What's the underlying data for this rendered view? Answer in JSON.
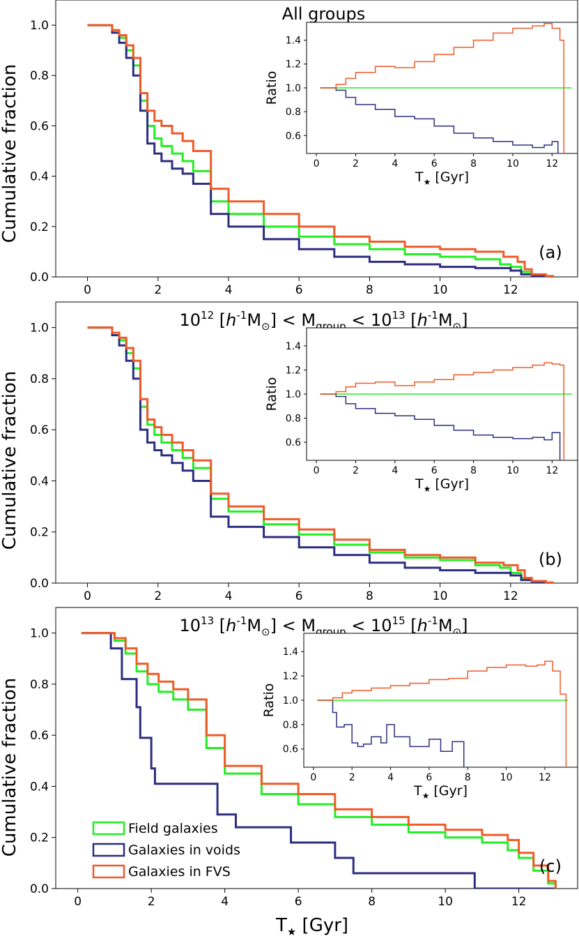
{
  "figure": {
    "xlabel": "T",
    "xlabel_sub": "★",
    "xlabel_unit": " [Gyr]",
    "ylabel": "Cumulative fraction",
    "legend": [
      {
        "label": "Field galaxies",
        "color": "#22ee22"
      },
      {
        "label": "Galaxies in voids",
        "color": "#2d2d80"
      },
      {
        "label": "Galaxies in FVS",
        "color": "#f05a28"
      }
    ]
  },
  "chart_data": [
    {
      "type": "line",
      "panel_label": "(a)",
      "title": "All groups",
      "xlim": [
        -0.9,
        13.9
      ],
      "ylim": [
        0,
        1.1
      ],
      "xticks": [
        0,
        2,
        4,
        6,
        8,
        10,
        12
      ],
      "yticks": [
        0.0,
        0.2,
        0.4,
        0.6,
        0.8,
        1.0
      ],
      "series": [
        {
          "name": "Field galaxies",
          "color": "#22ee22",
          "x": [
            0,
            0.5,
            0.7,
            0.9,
            1.1,
            1.3,
            1.5,
            1.7,
            1.9,
            2.1,
            2.4,
            2.7,
            3.0,
            3.5,
            4.0,
            5.0,
            6.0,
            7.0,
            8.0,
            9.0,
            10.0,
            11.0,
            11.7,
            12.0,
            12.3,
            12.6,
            13.0,
            13.2
          ],
          "y": [
            1.0,
            1.0,
            0.98,
            0.95,
            0.9,
            0.84,
            0.7,
            0.6,
            0.55,
            0.52,
            0.49,
            0.46,
            0.42,
            0.3,
            0.25,
            0.2,
            0.16,
            0.13,
            0.11,
            0.09,
            0.08,
            0.07,
            0.05,
            0.04,
            0.02,
            0.01,
            0.003,
            0
          ]
        },
        {
          "name": "Galaxies in voids",
          "color": "#2d2d80",
          "x": [
            0,
            0.5,
            0.7,
            0.9,
            1.1,
            1.3,
            1.5,
            1.7,
            1.9,
            2.1,
            2.4,
            2.7,
            3.0,
            3.5,
            4.0,
            5.0,
            6.0,
            7.0,
            8.0,
            9.0,
            10.0,
            11.0,
            12.0,
            12.3,
            12.6,
            13.0
          ],
          "y": [
            1.0,
            1.0,
            0.97,
            0.93,
            0.87,
            0.8,
            0.66,
            0.53,
            0.49,
            0.46,
            0.43,
            0.41,
            0.37,
            0.25,
            0.2,
            0.15,
            0.11,
            0.08,
            0.06,
            0.05,
            0.04,
            0.035,
            0.025,
            0.01,
            0.003,
            0
          ]
        },
        {
          "name": "Galaxies in FVS",
          "color": "#f05a28",
          "x": [
            0,
            0.5,
            0.7,
            0.9,
            1.1,
            1.3,
            1.5,
            1.7,
            1.9,
            2.1,
            2.4,
            2.7,
            3.0,
            3.5,
            4.0,
            5.0,
            6.0,
            7.0,
            8.0,
            9.0,
            10.0,
            11.0,
            11.8,
            12.2,
            12.4,
            12.6,
            13.0,
            13.2
          ],
          "y": [
            1.0,
            1.0,
            0.98,
            0.96,
            0.92,
            0.87,
            0.73,
            0.66,
            0.62,
            0.6,
            0.57,
            0.54,
            0.5,
            0.35,
            0.3,
            0.25,
            0.2,
            0.16,
            0.14,
            0.12,
            0.11,
            0.1,
            0.08,
            0.06,
            0.03,
            0.01,
            0.003,
            0
          ]
        }
      ],
      "inset": {
        "xlabel": "T",
        "xlabel_sub": "★",
        "xlabel_unit": " [Gyr]",
        "ylabel": "Ratio",
        "xlim": [
          -0.5,
          13.3
        ],
        "ylim": [
          0.45,
          1.55
        ],
        "xticks": [
          0,
          2,
          4,
          6,
          8,
          10,
          12
        ],
        "yticks": [
          0.6,
          0.8,
          1.0,
          1.2,
          1.4
        ],
        "series": [
          {
            "name": "Field galaxies",
            "color": "#22ee22",
            "x": [
              0.2,
              13.0
            ],
            "y": [
              1.0,
              1.0
            ]
          },
          {
            "name": "Galaxies in voids",
            "color": "#2d2d80",
            "x": [
              0.2,
              0.6,
              1.0,
              1.5,
              2.0,
              3.0,
              4.0,
              5.0,
              6.0,
              7.0,
              8.0,
              9.0,
              10.0,
              11.0,
              11.6,
              12.0,
              12.3
            ],
            "y": [
              1.0,
              1.0,
              0.98,
              0.92,
              0.86,
              0.82,
              0.76,
              0.74,
              0.68,
              0.62,
              0.58,
              0.55,
              0.52,
              0.5,
              0.52,
              0.55,
              0.3
            ]
          },
          {
            "name": "Galaxies in FVS",
            "color": "#f05a28",
            "x": [
              0.2,
              0.6,
              1.0,
              1.5,
              2.0,
              3.0,
              4.0,
              5.0,
              6.0,
              7.0,
              8.0,
              9.0,
              10.0,
              11.0,
              11.6,
              12.0,
              12.4,
              12.6
            ],
            "y": [
              1.0,
              1.0,
              1.03,
              1.08,
              1.13,
              1.18,
              1.17,
              1.22,
              1.28,
              1.34,
              1.4,
              1.46,
              1.5,
              1.52,
              1.54,
              1.5,
              1.4,
              0.3
            ]
          }
        ]
      }
    },
    {
      "type": "line",
      "panel_label": "(b)",
      "title_parts": {
        "a": "10",
        "a_exp": "12",
        "b": " [",
        "h": "h",
        "h_exp": "-1",
        "m": "M",
        "m_sub": "⊙",
        "c": "] < M",
        "c_sub": "group",
        "d": " < 10",
        "d_exp": "13",
        "e": " [",
        "h2": "h",
        "h2_exp": "-1",
        "m2": "M",
        "m2_sub": "⊙",
        "f": "]"
      },
      "xlim": [
        -0.9,
        13.9
      ],
      "ylim": [
        0,
        1.1
      ],
      "xticks": [
        0,
        2,
        4,
        6,
        8,
        10,
        12
      ],
      "yticks": [
        0.0,
        0.2,
        0.4,
        0.6,
        0.8,
        1.0
      ],
      "series": [
        {
          "name": "Field galaxies",
          "color": "#22ee22",
          "x": [
            0,
            0.5,
            0.7,
            0.9,
            1.1,
            1.3,
            1.5,
            1.7,
            1.9,
            2.1,
            2.4,
            2.7,
            3.0,
            3.5,
            4.0,
            5.0,
            6.0,
            7.0,
            8.0,
            9.0,
            10.0,
            11.0,
            11.7,
            12.0,
            12.3,
            12.6,
            13.0,
            13.2
          ],
          "y": [
            1.0,
            1.0,
            0.98,
            0.95,
            0.9,
            0.84,
            0.69,
            0.62,
            0.58,
            0.55,
            0.52,
            0.49,
            0.45,
            0.33,
            0.28,
            0.23,
            0.19,
            0.15,
            0.12,
            0.1,
            0.09,
            0.07,
            0.06,
            0.04,
            0.02,
            0.008,
            0.002,
            0
          ]
        },
        {
          "name": "Galaxies in voids",
          "color": "#2d2d80",
          "x": [
            0,
            0.5,
            0.7,
            0.9,
            1.1,
            1.3,
            1.5,
            1.7,
            1.9,
            2.1,
            2.4,
            2.7,
            3.0,
            3.5,
            4.0,
            5.0,
            6.0,
            7.0,
            8.0,
            9.0,
            10.0,
            11.0,
            12.0,
            12.3,
            12.6,
            13.0
          ],
          "y": [
            1.0,
            1.0,
            0.97,
            0.93,
            0.87,
            0.8,
            0.6,
            0.55,
            0.52,
            0.5,
            0.47,
            0.44,
            0.4,
            0.26,
            0.22,
            0.18,
            0.14,
            0.11,
            0.08,
            0.06,
            0.05,
            0.04,
            0.03,
            0.012,
            0.003,
            0
          ]
        },
        {
          "name": "Galaxies in FVS",
          "color": "#f05a28",
          "x": [
            0,
            0.5,
            0.7,
            0.9,
            1.1,
            1.3,
            1.5,
            1.7,
            1.9,
            2.1,
            2.4,
            2.7,
            3.0,
            3.5,
            4.0,
            5.0,
            6.0,
            7.0,
            8.0,
            9.0,
            10.0,
            11.0,
            11.8,
            12.2,
            12.4,
            12.6,
            13.0,
            13.2
          ],
          "y": [
            1.0,
            1.0,
            0.98,
            0.96,
            0.92,
            0.87,
            0.72,
            0.64,
            0.61,
            0.58,
            0.55,
            0.52,
            0.48,
            0.35,
            0.3,
            0.25,
            0.21,
            0.17,
            0.13,
            0.11,
            0.1,
            0.08,
            0.07,
            0.05,
            0.02,
            0.008,
            0.002,
            0
          ]
        }
      ],
      "inset": {
        "xlabel": "T",
        "xlabel_sub": "★",
        "xlabel_unit": " [Gyr]",
        "ylabel": "Ratio",
        "xlim": [
          -0.5,
          13.3
        ],
        "ylim": [
          0.45,
          1.55
        ],
        "xticks": [
          0,
          2,
          4,
          6,
          8,
          10,
          12
        ],
        "yticks": [
          0.6,
          0.8,
          1.0,
          1.2,
          1.4
        ],
        "series": [
          {
            "name": "Field galaxies",
            "color": "#22ee22",
            "x": [
              0.2,
              13.0
            ],
            "y": [
              1.0,
              1.0
            ]
          },
          {
            "name": "Galaxies in voids",
            "color": "#2d2d80",
            "x": [
              0.2,
              0.6,
              1.0,
              1.5,
              2.0,
              3.0,
              4.0,
              5.0,
              6.0,
              7.0,
              8.0,
              9.0,
              10.0,
              11.0,
              11.6,
              12.0,
              12.4
            ],
            "y": [
              1.0,
              1.0,
              0.98,
              0.92,
              0.88,
              0.84,
              0.82,
              0.79,
              0.74,
              0.7,
              0.66,
              0.64,
              0.63,
              0.64,
              0.62,
              0.68,
              0.3
            ]
          },
          {
            "name": "Galaxies in FVS",
            "color": "#f05a28",
            "x": [
              0.2,
              0.6,
              1.0,
              1.5,
              2.0,
              3.0,
              4.0,
              5.0,
              6.0,
              7.0,
              8.0,
              9.0,
              10.0,
              11.0,
              11.6,
              12.0,
              12.4,
              12.6
            ],
            "y": [
              1.0,
              1.0,
              1.02,
              1.06,
              1.09,
              1.1,
              1.07,
              1.1,
              1.12,
              1.16,
              1.18,
              1.2,
              1.22,
              1.24,
              1.26,
              1.25,
              1.24,
              0.3
            ]
          }
        ]
      }
    },
    {
      "type": "line",
      "panel_label": "(c)",
      "title_parts": {
        "a": "10",
        "a_exp": "13",
        "b": " [",
        "h": "h",
        "h_exp": "-1",
        "m": "M",
        "m_sub": "⊙",
        "c": "] < M",
        "c_sub": "group",
        "d": " < 10",
        "d_exp": "15",
        "e": " [",
        "h2": "h",
        "h2_exp": "-1",
        "m2": "M",
        "m2_sub": "⊙",
        "f": "]"
      },
      "xlim": [
        -0.6,
        13.6
      ],
      "ylim": [
        0,
        1.1
      ],
      "xticks": [
        0,
        2,
        4,
        6,
        8,
        10,
        12
      ],
      "yticks": [
        0.0,
        0.2,
        0.4,
        0.6,
        0.8,
        1.0
      ],
      "series": [
        {
          "name": "Field galaxies",
          "color": "#22ee22",
          "x": [
            0.1,
            0.7,
            1.0,
            1.3,
            1.6,
            1.9,
            2.2,
            2.6,
            3.0,
            3.5,
            4.0,
            5.0,
            6.0,
            7.0,
            8.0,
            9.0,
            10.0,
            11.0,
            11.7,
            12.0,
            12.4,
            12.8,
            13.0
          ],
          "y": [
            1.0,
            1.0,
            0.97,
            0.92,
            0.85,
            0.8,
            0.77,
            0.74,
            0.7,
            0.55,
            0.45,
            0.37,
            0.33,
            0.28,
            0.25,
            0.22,
            0.2,
            0.18,
            0.15,
            0.12,
            0.07,
            0.02,
            0
          ]
        },
        {
          "name": "Galaxies in voids",
          "color": "#2d2d80",
          "x": [
            0.1,
            0.7,
            0.9,
            1.2,
            1.6,
            1.7,
            2.0,
            2.1,
            3.0,
            3.8,
            4.3,
            5.8,
            7.0,
            7.5,
            10.8,
            13.0
          ],
          "y": [
            1.0,
            1.0,
            0.94,
            0.82,
            0.71,
            0.59,
            0.47,
            0.41,
            0.41,
            0.29,
            0.24,
            0.18,
            0.12,
            0.06,
            0.0,
            0
          ]
        },
        {
          "name": "Galaxies in FVS",
          "color": "#f05a28",
          "x": [
            0.1,
            0.7,
            1.0,
            1.3,
            1.6,
            1.9,
            2.2,
            2.6,
            3.0,
            3.5,
            4.0,
            5.0,
            6.0,
            7.0,
            8.0,
            9.0,
            10.0,
            11.0,
            11.7,
            12.0,
            12.4,
            12.8,
            13.0
          ],
          "y": [
            1.0,
            1.0,
            0.98,
            0.94,
            0.88,
            0.84,
            0.81,
            0.78,
            0.74,
            0.6,
            0.48,
            0.41,
            0.37,
            0.31,
            0.28,
            0.25,
            0.23,
            0.21,
            0.19,
            0.14,
            0.09,
            0.03,
            0
          ]
        }
      ],
      "inset": {
        "xlabel": "T",
        "xlabel_sub": "★",
        "xlabel_unit": " [Gyr]",
        "ylabel": "Ratio",
        "xlim": [
          -0.5,
          13.7
        ],
        "ylim": [
          0.45,
          1.55
        ],
        "xticks": [
          0,
          2,
          4,
          6,
          8,
          10,
          12
        ],
        "yticks": [
          0.6,
          0.8,
          1.0,
          1.2,
          1.4
        ],
        "series": [
          {
            "name": "Field galaxies",
            "color": "#22ee22",
            "x": [
              0.2,
              13.2
            ],
            "y": [
              1.0,
              1.0
            ]
          },
          {
            "name": "Galaxies in voids",
            "color": "#2d2d80",
            "x": [
              0.2,
              0.6,
              1.0,
              1.2,
              1.6,
              2.0,
              2.3,
              2.6,
              3.0,
              3.5,
              3.8,
              4.2,
              5.0,
              6.0,
              6.6,
              7.2,
              7.8
            ],
            "y": [
              1.0,
              1.0,
              0.9,
              0.78,
              0.8,
              0.65,
              0.62,
              0.64,
              0.7,
              0.65,
              0.8,
              0.7,
              0.62,
              0.68,
              0.58,
              0.66,
              0.3
            ]
          },
          {
            "name": "Galaxies in FVS",
            "color": "#f05a28",
            "x": [
              0.2,
              0.6,
              1.0,
              1.5,
              2.0,
              3.0,
              4.0,
              5.0,
              6.0,
              7.0,
              8.0,
              9.0,
              10.0,
              11.0,
              11.6,
              12.0,
              12.4,
              12.8,
              13.1
            ],
            "y": [
              1.0,
              1.0,
              1.02,
              1.06,
              1.08,
              1.1,
              1.12,
              1.14,
              1.17,
              1.18,
              1.24,
              1.27,
              1.29,
              1.28,
              1.29,
              1.32,
              1.24,
              1.05,
              0.3
            ]
          }
        ]
      }
    }
  ]
}
